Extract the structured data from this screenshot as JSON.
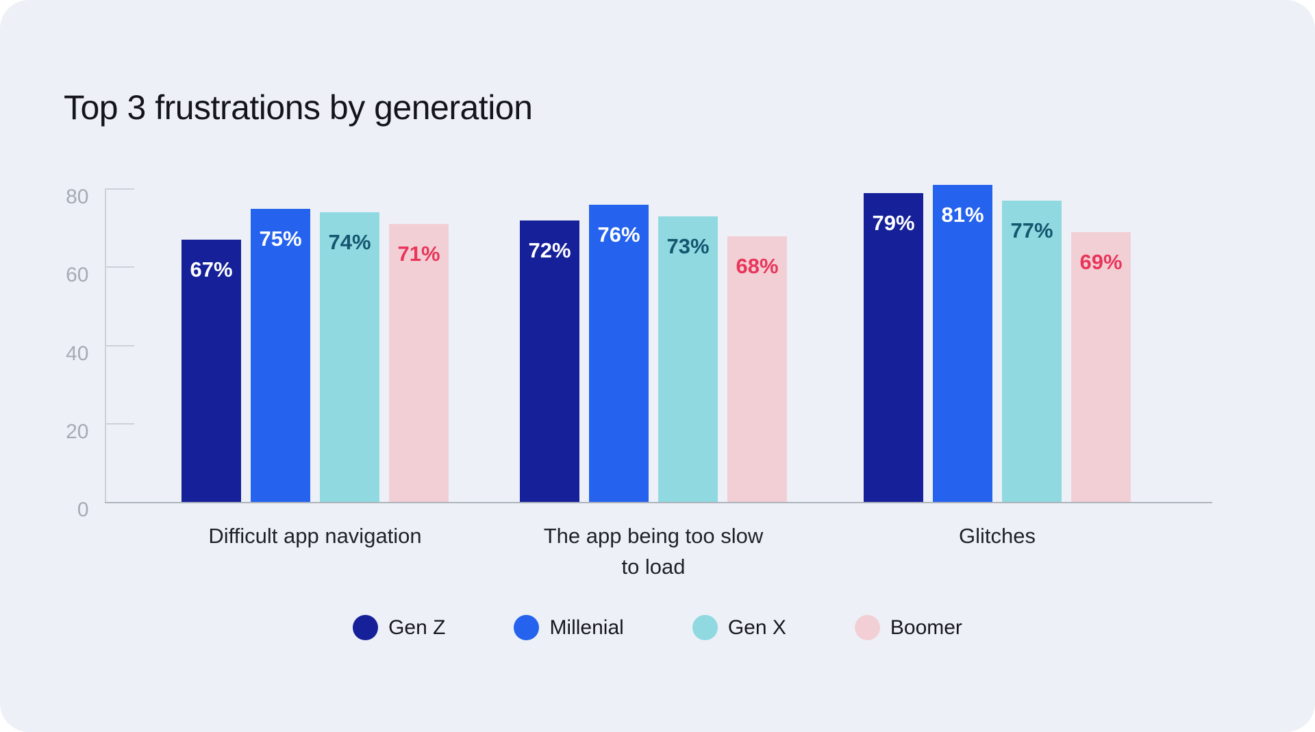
{
  "page": {
    "background": "#FFFFFF",
    "card_background": "#EDF1F7"
  },
  "title": "Top 3 frustrations by generation",
  "chart_data": {
    "type": "bar",
    "title": "Top 3 frustrations by generation",
    "categories": [
      "Difficult app navigation",
      "The app being too slow to load",
      "Glitches"
    ],
    "category_label_lines": [
      [
        "Difficult app navigation"
      ],
      [
        "The app being too slow",
        "to load"
      ],
      [
        "Glitches"
      ]
    ],
    "series": [
      {
        "name": "Gen Z",
        "color": "#152099",
        "label_color": "#FFFFFF",
        "values": [
          67,
          72,
          79
        ]
      },
      {
        "name": "Millenial",
        "color": "#2563EE",
        "label_color": "#FFFFFF",
        "values": [
          75,
          76,
          81
        ]
      },
      {
        "name": "Gen X",
        "color": "#90D9E1",
        "label_color": "#14566F",
        "values": [
          74,
          73,
          77
        ]
      },
      {
        "name": "Boomer",
        "color": "#F2CFD5",
        "label_color": "#E8365A",
        "values": [
          71,
          68,
          69
        ]
      }
    ],
    "value_labels": [
      [
        "67%",
        "75%",
        "74%",
        "71%"
      ],
      [
        "72%",
        "76%",
        "73%",
        "68%"
      ],
      [
        "79%",
        "81%",
        "77%",
        "69%"
      ]
    ],
    "value_suffix": "%",
    "y_axis": {
      "ticks": [
        0,
        20,
        40,
        60,
        80
      ],
      "min": 0,
      "max": 80,
      "tick_label_color": "#A6AAB4",
      "axis_color": "#CDD0D8",
      "baseline_color": "#AEB2BB"
    },
    "grid": false,
    "legend": {
      "position": "bottom",
      "entries": [
        {
          "label": "Gen Z",
          "color": "#152099"
        },
        {
          "label": "Millenial",
          "color": "#2563EE"
        },
        {
          "label": "Gen X",
          "color": "#90D9E1"
        },
        {
          "label": "Boomer",
          "color": "#F2CFD5"
        }
      ]
    }
  }
}
